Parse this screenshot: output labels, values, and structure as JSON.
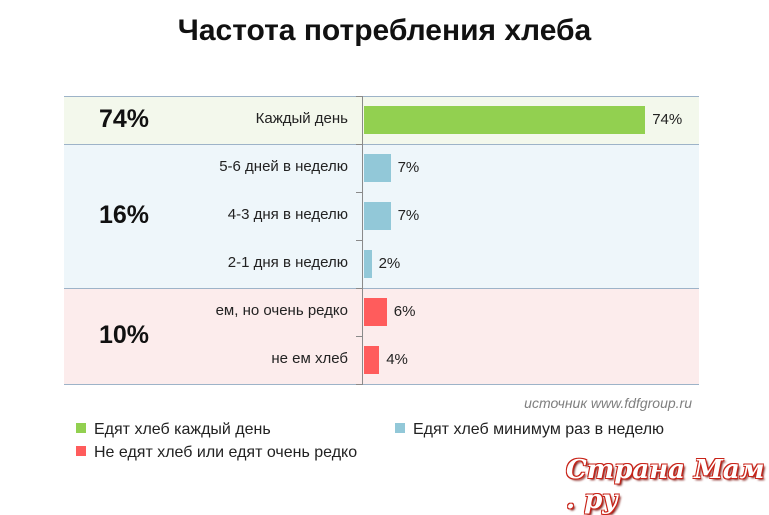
{
  "chart_data": {
    "type": "bar",
    "orientation": "horizontal",
    "title": "Частота потребления хлеба",
    "categories": [
      "Каждый день",
      "5-6 дней в неделю",
      "4-3 дня в неделю",
      "2-1 дня в неделю",
      "ем, но очень редко",
      "не ем хлеб"
    ],
    "values": [
      74,
      7,
      7,
      2,
      6,
      4
    ],
    "value_labels": [
      "74%",
      "7%",
      "7%",
      "2%",
      "6%",
      "4%"
    ],
    "bar_groups": [
      0,
      1,
      1,
      1,
      2,
      2
    ],
    "groups": [
      {
        "name": "Едят хлеб каждый день",
        "total": "74%",
        "color": "#92d050",
        "background": "#f3f8ec"
      },
      {
        "name": "Едят хлеб минимум раз в неделю",
        "total": "16%",
        "color": "#92c8d8",
        "background": "#eef6fa"
      },
      {
        "name": "Не едят хлеб или едят очень редко",
        "total": "10%",
        "color": "#ff5c5c",
        "background": "#fcecec"
      }
    ],
    "xlim": [
      0,
      100
    ],
    "legend_position": "bottom",
    "grid": false
  },
  "source_text": "источник www.fdfgroup.ru",
  "watermark": "Страна Мам . ру"
}
